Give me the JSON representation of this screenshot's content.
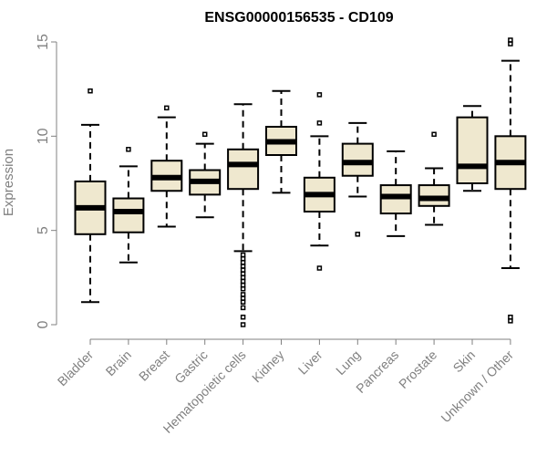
{
  "chart_data": {
    "type": "boxplot",
    "title": "ENSG00000156535 - CD109",
    "xlabel": "",
    "ylabel": "Expression",
    "ylim": [
      0,
      15
    ],
    "yticks": [
      0,
      5,
      10,
      15
    ],
    "box_fill": "#efe8cf",
    "categories": [
      "Bladder",
      "Brain",
      "Breast",
      "Gastric",
      "Hematopoietic cells",
      "Kidney",
      "Liver",
      "Lung",
      "Pancreas",
      "Prostate",
      "Skin",
      "Unknown / Other"
    ],
    "boxes": [
      {
        "category": "Bladder",
        "whisker_low": 1.2,
        "q1": 4.8,
        "median": 6.2,
        "q3": 7.6,
        "whisker_high": 10.6,
        "outliers": [
          12.4
        ]
      },
      {
        "category": "Brain",
        "whisker_low": 3.3,
        "q1": 4.9,
        "median": 6.0,
        "q3": 6.7,
        "whisker_high": 8.4,
        "outliers": [
          9.3
        ]
      },
      {
        "category": "Breast",
        "whisker_low": 5.2,
        "q1": 7.1,
        "median": 7.8,
        "q3": 8.7,
        "whisker_high": 11.0,
        "outliers": [
          11.5
        ]
      },
      {
        "category": "Gastric",
        "whisker_low": 5.7,
        "q1": 6.9,
        "median": 7.6,
        "q3": 8.2,
        "whisker_high": 9.6,
        "outliers": [
          10.1
        ]
      },
      {
        "category": "Hematopoietic cells",
        "whisker_low": 3.9,
        "q1": 7.2,
        "median": 8.5,
        "q3": 9.3,
        "whisker_high": 11.7,
        "outliers": [
          0.0,
          0.4,
          0.9,
          1.2,
          1.4,
          1.6,
          1.9,
          2.1,
          2.3,
          2.5,
          2.7,
          2.9,
          3.1,
          3.3,
          3.5,
          3.7
        ]
      },
      {
        "category": "Kidney",
        "whisker_low": 7.0,
        "q1": 9.0,
        "median": 9.7,
        "q3": 10.5,
        "whisker_high": 12.4,
        "outliers": []
      },
      {
        "category": "Liver",
        "whisker_low": 4.2,
        "q1": 6.0,
        "median": 6.9,
        "q3": 7.8,
        "whisker_high": 10.0,
        "outliers": [
          3.0,
          10.7,
          12.2
        ]
      },
      {
        "category": "Lung",
        "whisker_low": 6.8,
        "q1": 7.9,
        "median": 8.6,
        "q3": 9.6,
        "whisker_high": 10.7,
        "outliers": [
          4.8
        ]
      },
      {
        "category": "Pancreas",
        "whisker_low": 4.7,
        "q1": 5.9,
        "median": 6.8,
        "q3": 7.4,
        "whisker_high": 9.2,
        "outliers": []
      },
      {
        "category": "Prostate",
        "whisker_low": 5.3,
        "q1": 6.3,
        "median": 6.7,
        "q3": 7.4,
        "whisker_high": 8.3,
        "outliers": [
          10.1
        ]
      },
      {
        "category": "Skin",
        "whisker_low": 7.1,
        "q1": 7.5,
        "median": 8.4,
        "q3": 11.0,
        "whisker_high": 11.6,
        "outliers": []
      },
      {
        "category": "Unknown / Other",
        "whisker_low": 3.0,
        "q1": 7.2,
        "median": 8.6,
        "q3": 10.0,
        "whisker_high": 14.0,
        "outliers": [
          0.2,
          0.4,
          14.9,
          15.1
        ]
      }
    ]
  }
}
